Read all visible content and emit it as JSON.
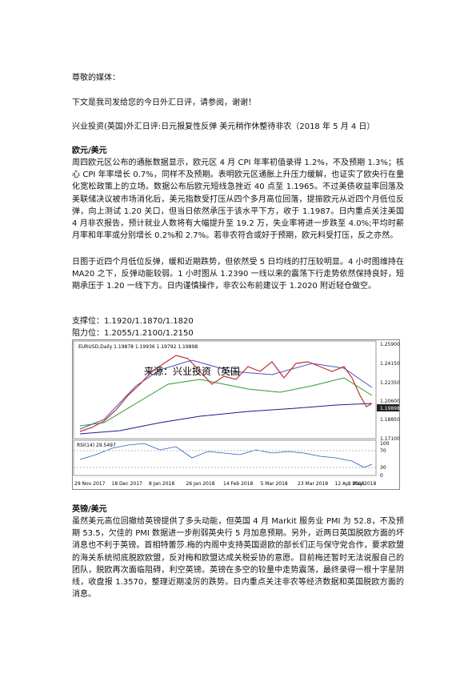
{
  "greeting": "尊敬的媒体：",
  "intro": "下文是我司发给您的今日外汇日评，请参阅，谢谢！",
  "headline": "兴业投资(英国)外汇日评:日元报复性反弹 美元稍作休整待非农（2018 年 5 月 4 日）",
  "eur": {
    "heading": "欧元/美元",
    "paragraphs": [
      "周四欧元区公布的通胀数据显示，欧元区 4 月 CPI 年率初值录得 1.2%，不及预期 1.3%；核心 CPI 年率增长 0.7%，同样不及预期。表明欧元区通胀上升压力缓解，也证实了欧央行在量化宽松政策上的立场。数据公布后欧元短线急挫近 40 点至 1.1965。不过美债收益率回落及美联储决议被市场消化后，美元指数受打压从四个多月高位回落，提振欧元从近四个月低位反弹，向上测试 1.20 关口，但当日依然承压于该水平下方，收于 1.1987。日内重点关注美国 4 月非农报告，预计就业人数将有大幅提升至 19.2 万，失业率将进一步跌至 4.0%;平均时薪月率和年率或分别增长 0.2%和 2.7%。若非农符合或好于预期，欧元料受打压，反之亦然。",
      "日图于近四个月低位反弹，缓和近期跌势，但依然受 5 日均线的打压较明显。4 小时图维持在 MA20 之下，反弹动能较弱。1 小时图从 1.2390 一线以来的震荡下行走势依然保持良好，短期承压于 1.20 一线下方。日内谨慎操作，非农公布前建议于 1.2020 附近轻仓做空。"
    ],
    "support": "支撑位：1.1920/1.1870/1.1820",
    "resistance": "阻力位：1.2055/1.2100/1.2150"
  },
  "figure": {
    "header": "EURUSD,Daily  1.19878 1.19936 1.19792 1.19898",
    "watermark": "来源：兴业投资（英国",
    "price_labels": [
      "1.25900",
      "1.24150",
      "1.22350",
      "1.20600",
      "1.19898",
      "1.18850",
      "1.17100"
    ],
    "rsi_header": "RSI(14) 29.5497",
    "rsi_labels": [
      "100",
      "70",
      "30",
      "0"
    ],
    "date_labels": [
      "29 Nov 2017",
      "18 Dec 2017",
      "8 Jan 2018",
      "26 Jan 2018",
      "14 Feb 2018",
      "5 Mar 2018",
      "23 Mar 2018",
      "12 Apr 2018",
      "1 May 2018"
    ]
  },
  "gbp": {
    "heading": "英镑/美元",
    "paragraphs": [
      "虽然美元高位回撤给英镑提供了多头动能，但英国 4 月 Markit 服务业 PMI 为 52.8，不及预期 53.5，欠佳的 PMI 数据进一步削弱英央行 5 月加息预期。另外，近两日英国脱欧方面的坏消息也不利于英镑。首相特蕾莎.梅的内阁中支持英国退欧的部长们正与保守党合作，要求欧盟的海关系统彻底脱欧欧盟，反对梅和欧盟达成关税妥协的意愿。目前梅还暂时无法说服自己的团队，脱欧再次面临阻碍，利空英镑。英镑在多空的较量中走势震荡，最终录得一根十字星阴线，收盘报 1.3570，整理近期凌厉的跌势。日内重点关注非农等经济数据和英国脱欧方面的消息。"
    ]
  }
}
